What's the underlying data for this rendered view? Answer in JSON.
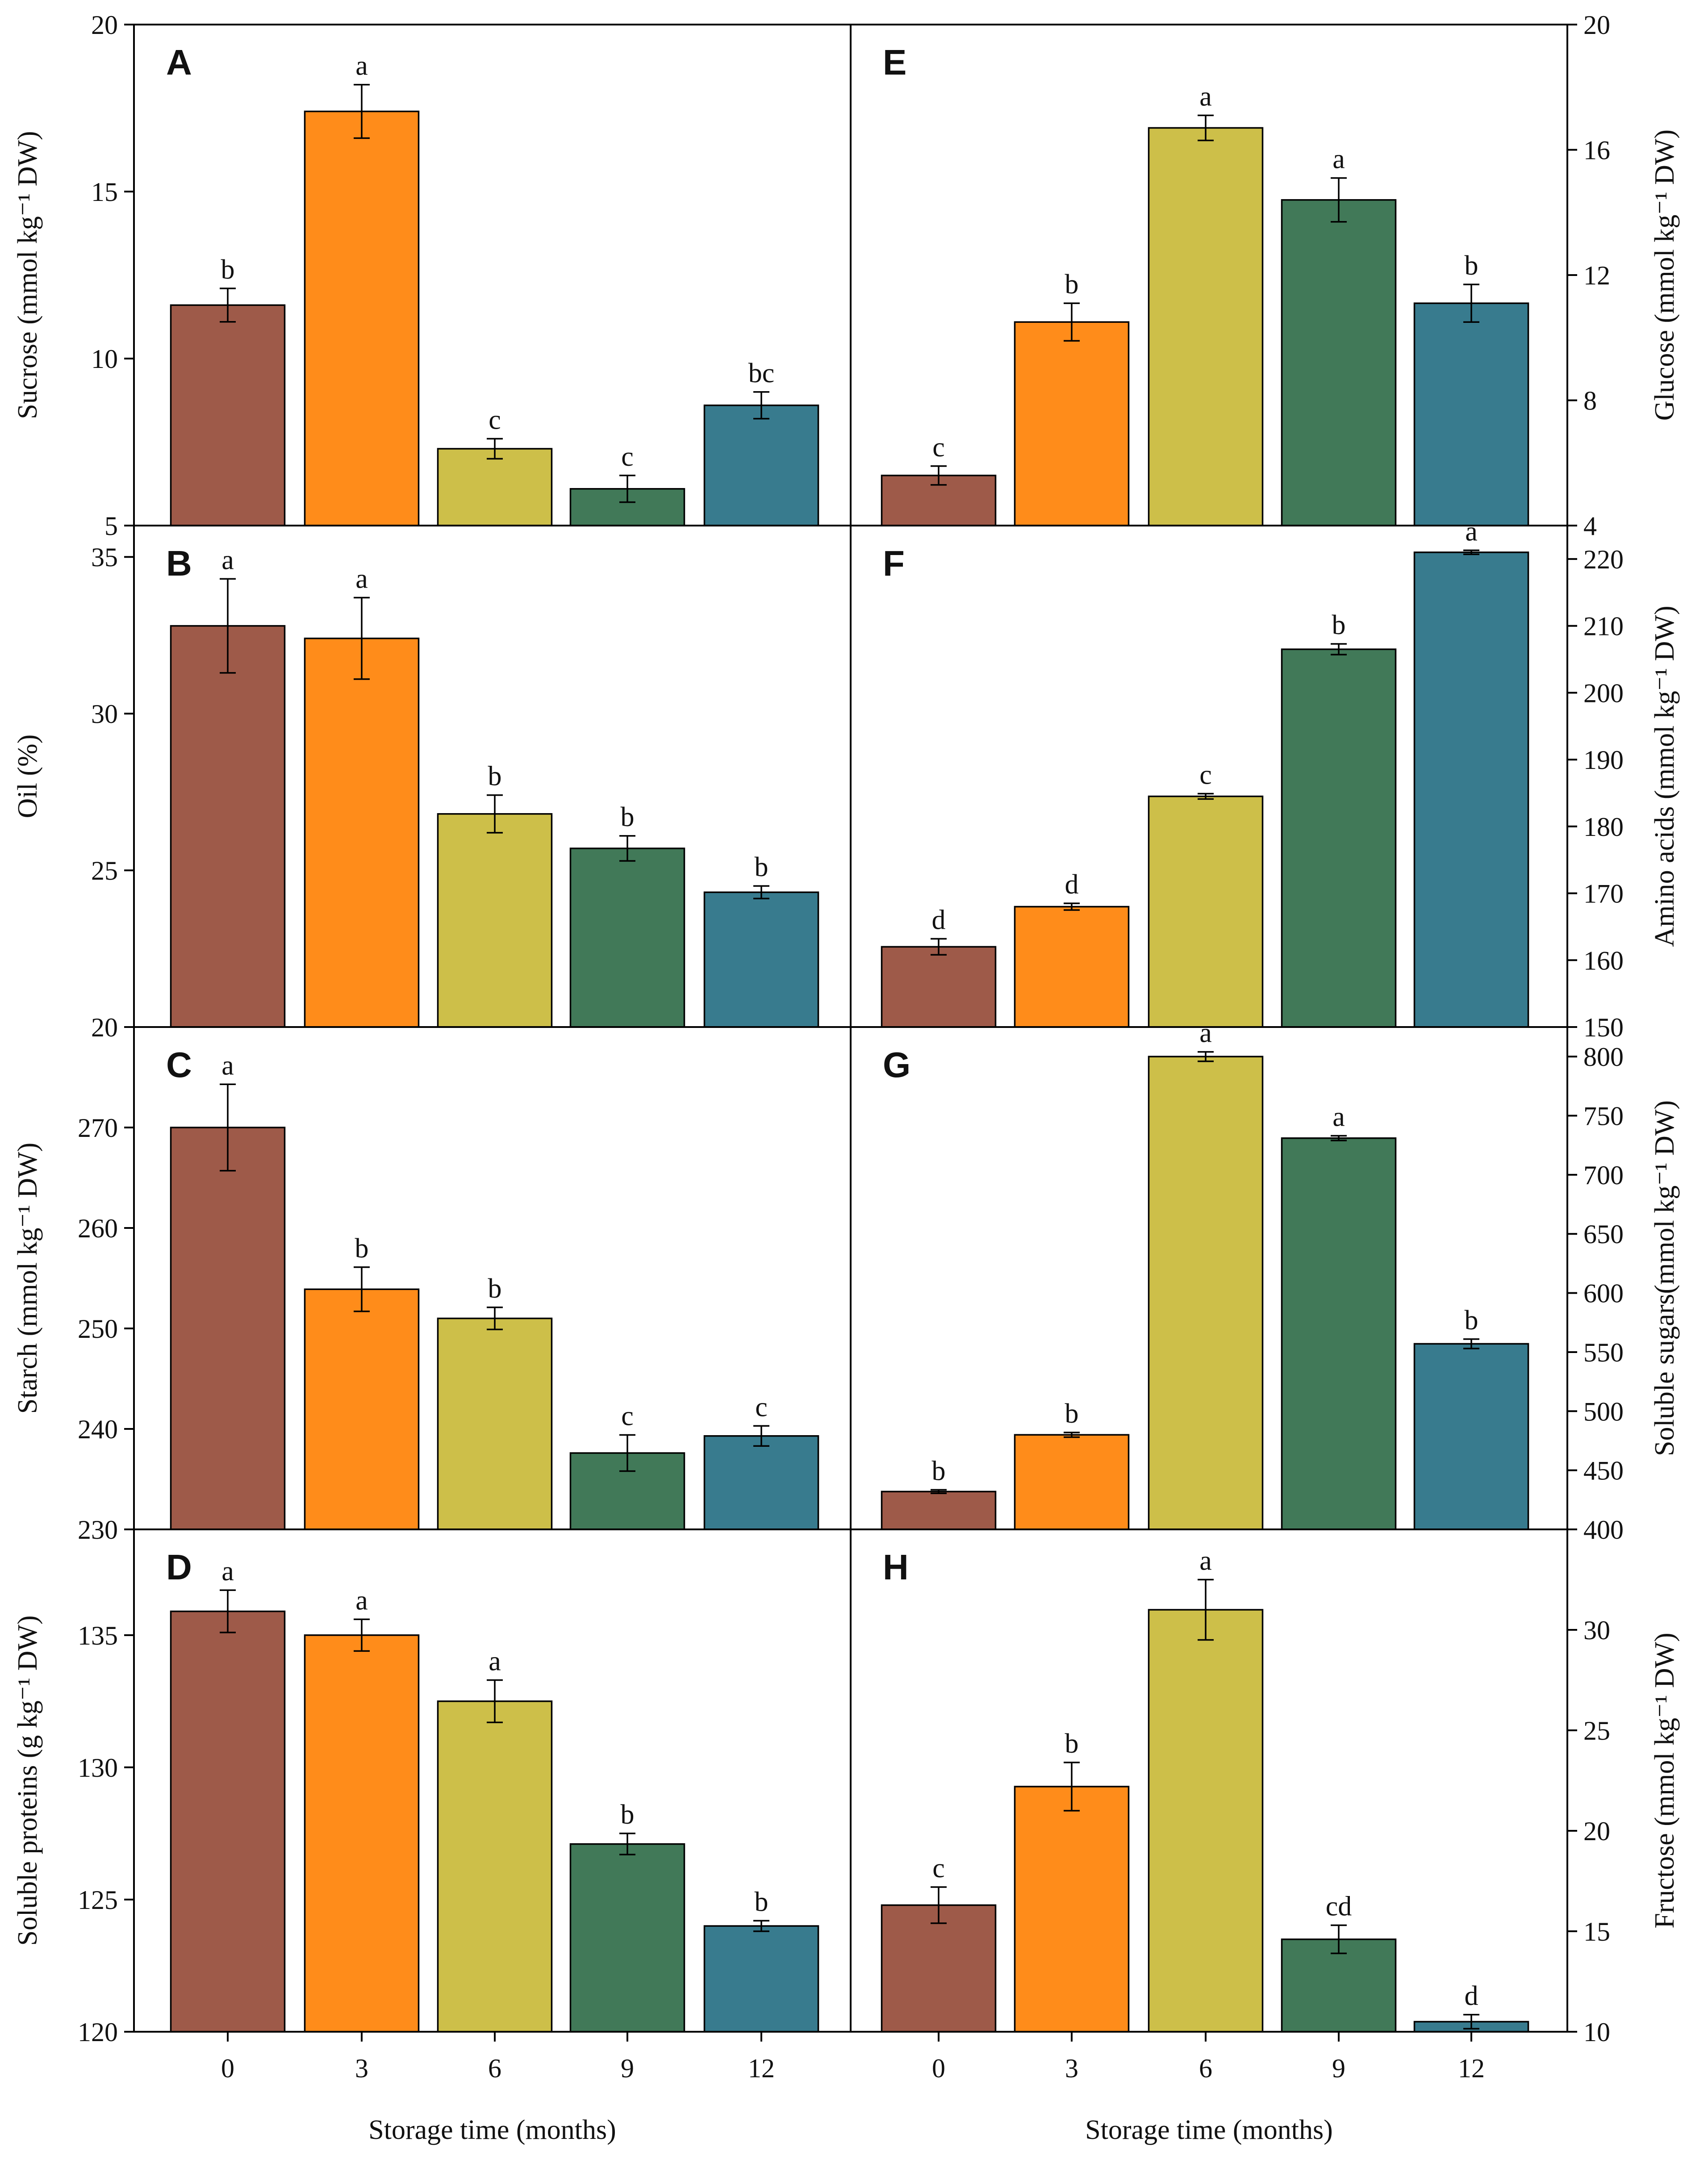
{
  "colors": [
    "#9e5a49",
    "#ff8c1a",
    "#cdbf49",
    "#417958",
    "#387b8e"
  ],
  "chart_data": [
    {
      "panel": "A",
      "type": "bar",
      "title": "",
      "categories": [
        "0",
        "3",
        "6",
        "9",
        "12"
      ],
      "values": [
        11.6,
        17.4,
        7.3,
        6.1,
        8.6
      ],
      "errors": [
        0.5,
        0.8,
        0.3,
        0.4,
        0.4
      ],
      "significance": [
        "b",
        "a",
        "c",
        "c",
        "bc"
      ],
      "ylabel": "Sucrose (mmol kg⁻¹ DW)",
      "ylim": [
        5,
        20
      ],
      "yticks": [
        5,
        10,
        15,
        20
      ],
      "yticklabels": [
        "5",
        "10",
        "15",
        "20"
      ],
      "yaxis_side": "left",
      "xlabel": ""
    },
    {
      "panel": "B",
      "type": "bar",
      "title": "",
      "categories": [
        "0",
        "3",
        "6",
        "9",
        "12"
      ],
      "values": [
        32.8,
        32.4,
        26.8,
        25.7,
        24.3
      ],
      "errors": [
        1.5,
        1.3,
        0.6,
        0.4,
        0.2
      ],
      "significance": [
        "a",
        "a",
        "b",
        "b",
        "b"
      ],
      "ylabel": "Oil (%)",
      "ylim": [
        20,
        36
      ],
      "yticks": [
        20,
        25,
        30,
        35
      ],
      "yticklabels": [
        "20",
        "25",
        "30",
        "35"
      ],
      "yaxis_side": "left",
      "xlabel": ""
    },
    {
      "panel": "C",
      "type": "bar",
      "title": "",
      "categories": [
        "0",
        "3",
        "6",
        "9",
        "12"
      ],
      "values": [
        270.0,
        253.9,
        251.0,
        237.6,
        239.3
      ],
      "errors": [
        4.3,
        2.2,
        1.1,
        1.8,
        1.0
      ],
      "significance": [
        "a",
        "b",
        "b",
        "c",
        "c"
      ],
      "ylabel": "Starch (mmol kg⁻¹ DW)",
      "ylim": [
        230,
        280
      ],
      "yticks": [
        230,
        240,
        250,
        260,
        270
      ],
      "yticklabels": [
        "230",
        "240",
        "250",
        "260",
        "270"
      ],
      "yaxis_side": "left",
      "xlabel": ""
    },
    {
      "panel": "D",
      "type": "bar",
      "title": "",
      "categories": [
        "0",
        "3",
        "6",
        "9",
        "12"
      ],
      "values": [
        135.9,
        135.0,
        132.5,
        127.1,
        124.0
      ],
      "errors": [
        0.8,
        0.6,
        0.8,
        0.4,
        0.2
      ],
      "significance": [
        "a",
        "a",
        "a",
        "b",
        "b"
      ],
      "ylabel": "Soluble proteins (g kg⁻¹ DW)",
      "ylim": [
        120,
        139
      ],
      "yticks": [
        120,
        125,
        130,
        135
      ],
      "yticklabels": [
        "120",
        "125",
        "130",
        "135"
      ],
      "yaxis_side": "left",
      "xlabel": "Storage time (months)",
      "xticklabels": [
        "0",
        "3",
        "6",
        "9",
        "12"
      ]
    },
    {
      "panel": "E",
      "type": "bar",
      "title": "",
      "categories": [
        "0",
        "3",
        "6",
        "9",
        "12"
      ],
      "values": [
        5.6,
        10.5,
        16.7,
        14.4,
        11.1
      ],
      "errors": [
        0.3,
        0.6,
        0.4,
        0.7,
        0.6
      ],
      "significance": [
        "c",
        "b",
        "a",
        "a",
        "b"
      ],
      "ylabel": "Glucose (mmol kg⁻¹ DW)",
      "ylim": [
        4,
        20
      ],
      "yticks": [
        4,
        8,
        12,
        16,
        20
      ],
      "yticklabels": [
        "4",
        "8",
        "12",
        "16",
        "20"
      ],
      "yaxis_side": "right",
      "xlabel": ""
    },
    {
      "panel": "F",
      "type": "bar",
      "title": "",
      "categories": [
        "0",
        "3",
        "6",
        "9",
        "12"
      ],
      "values": [
        162,
        168,
        184.5,
        206.5,
        221
      ],
      "errors": [
        1.2,
        0.5,
        0.4,
        0.8,
        0.3
      ],
      "significance": [
        "d",
        "d",
        "c",
        "b",
        "a"
      ],
      "ylabel": "Amino acids (mmol kg⁻¹ DW)",
      "ylim": [
        150,
        225
      ],
      "yticks": [
        150,
        160,
        170,
        180,
        190,
        200,
        210,
        220
      ],
      "yticklabels": [
        "150",
        "160",
        "170",
        "180",
        "190",
        "200",
        "210",
        "220"
      ],
      "yaxis_side": "right",
      "xlabel": ""
    },
    {
      "panel": "G",
      "type": "bar",
      "title": "",
      "categories": [
        "0",
        "3",
        "6",
        "9",
        "12"
      ],
      "values": [
        432,
        480,
        800,
        731,
        557
      ],
      "errors": [
        1.5,
        2,
        4,
        2,
        4
      ],
      "significance": [
        "b",
        "b",
        "a",
        "a",
        "b"
      ],
      "ylabel": "Soluble sugars(mmol kg⁻¹ DW)",
      "ylim": [
        400,
        825
      ],
      "yticks": [
        400,
        450,
        500,
        550,
        600,
        650,
        700,
        750,
        800
      ],
      "yticklabels": [
        "400",
        "450",
        "500",
        "550",
        "600",
        "650",
        "700",
        "750",
        "800"
      ],
      "yaxis_side": "right",
      "xlabel": ""
    },
    {
      "panel": "H",
      "type": "bar",
      "title": "",
      "categories": [
        "0",
        "3",
        "6",
        "9",
        "12"
      ],
      "values": [
        16.3,
        22.2,
        31.0,
        14.6,
        10.5
      ],
      "errors": [
        0.9,
        1.2,
        1.5,
        0.7,
        0.35
      ],
      "significance": [
        "c",
        "b",
        "a",
        "cd",
        "d"
      ],
      "ylabel": "Fructose (mmol kg⁻¹ DW)",
      "ylim": [
        10,
        35
      ],
      "yticks": [
        10,
        15,
        20,
        25,
        30
      ],
      "yticklabels": [
        "10",
        "15",
        "20",
        "25",
        "30"
      ],
      "yaxis_side": "right",
      "xlabel": "Storage time (months)",
      "xticklabels": [
        "0",
        "3",
        "6",
        "9",
        "12"
      ]
    }
  ]
}
